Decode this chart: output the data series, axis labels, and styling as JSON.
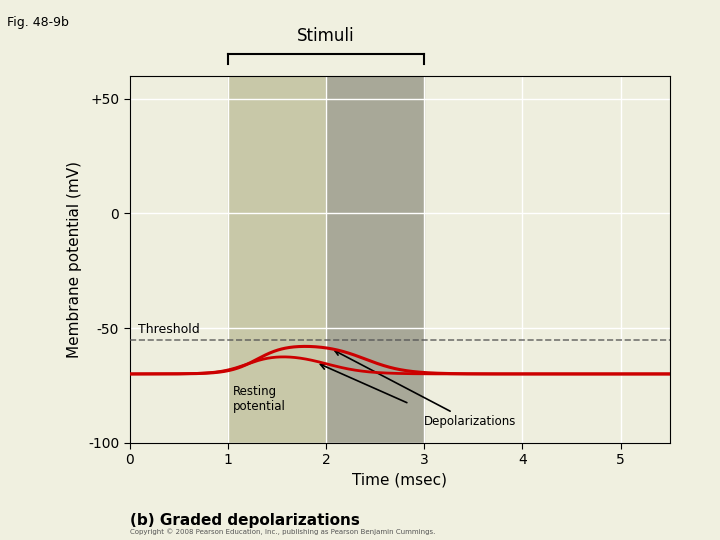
{
  "fig_label": "Fig. 48-9b",
  "title": "Stimuli",
  "subtitle": "(b) Graded depolarizations",
  "xlabel": "Time (msec)",
  "ylabel": "Membrane potential (mV)",
  "ylim": [
    -100,
    60
  ],
  "xlim": [
    0,
    5.5
  ],
  "yticks": [
    -100,
    -50,
    0,
    50
  ],
  "ytick_labels": [
    "-100",
    "-50",
    "0",
    "+50"
  ],
  "xticks": [
    0,
    1,
    2,
    3,
    4,
    5
  ],
  "threshold": -55,
  "resting_potential": -70,
  "fig_bg_color": "#f0f0e0",
  "stimuli_bg_light": "#c8c8a8",
  "stimuli_bg_dark": "#a8a898",
  "plot_bg": "#eeeede",
  "line_color": "#cc0000",
  "threshold_line_color": "#555555",
  "stimuli_x_start": 1.0,
  "stimuli_x_mid": 2.0,
  "stimuli_x_end": 3.0,
  "copyright": "Copyright © 2008 Pearson Education, Inc., publishing as Pearson Benjamin Cummings."
}
